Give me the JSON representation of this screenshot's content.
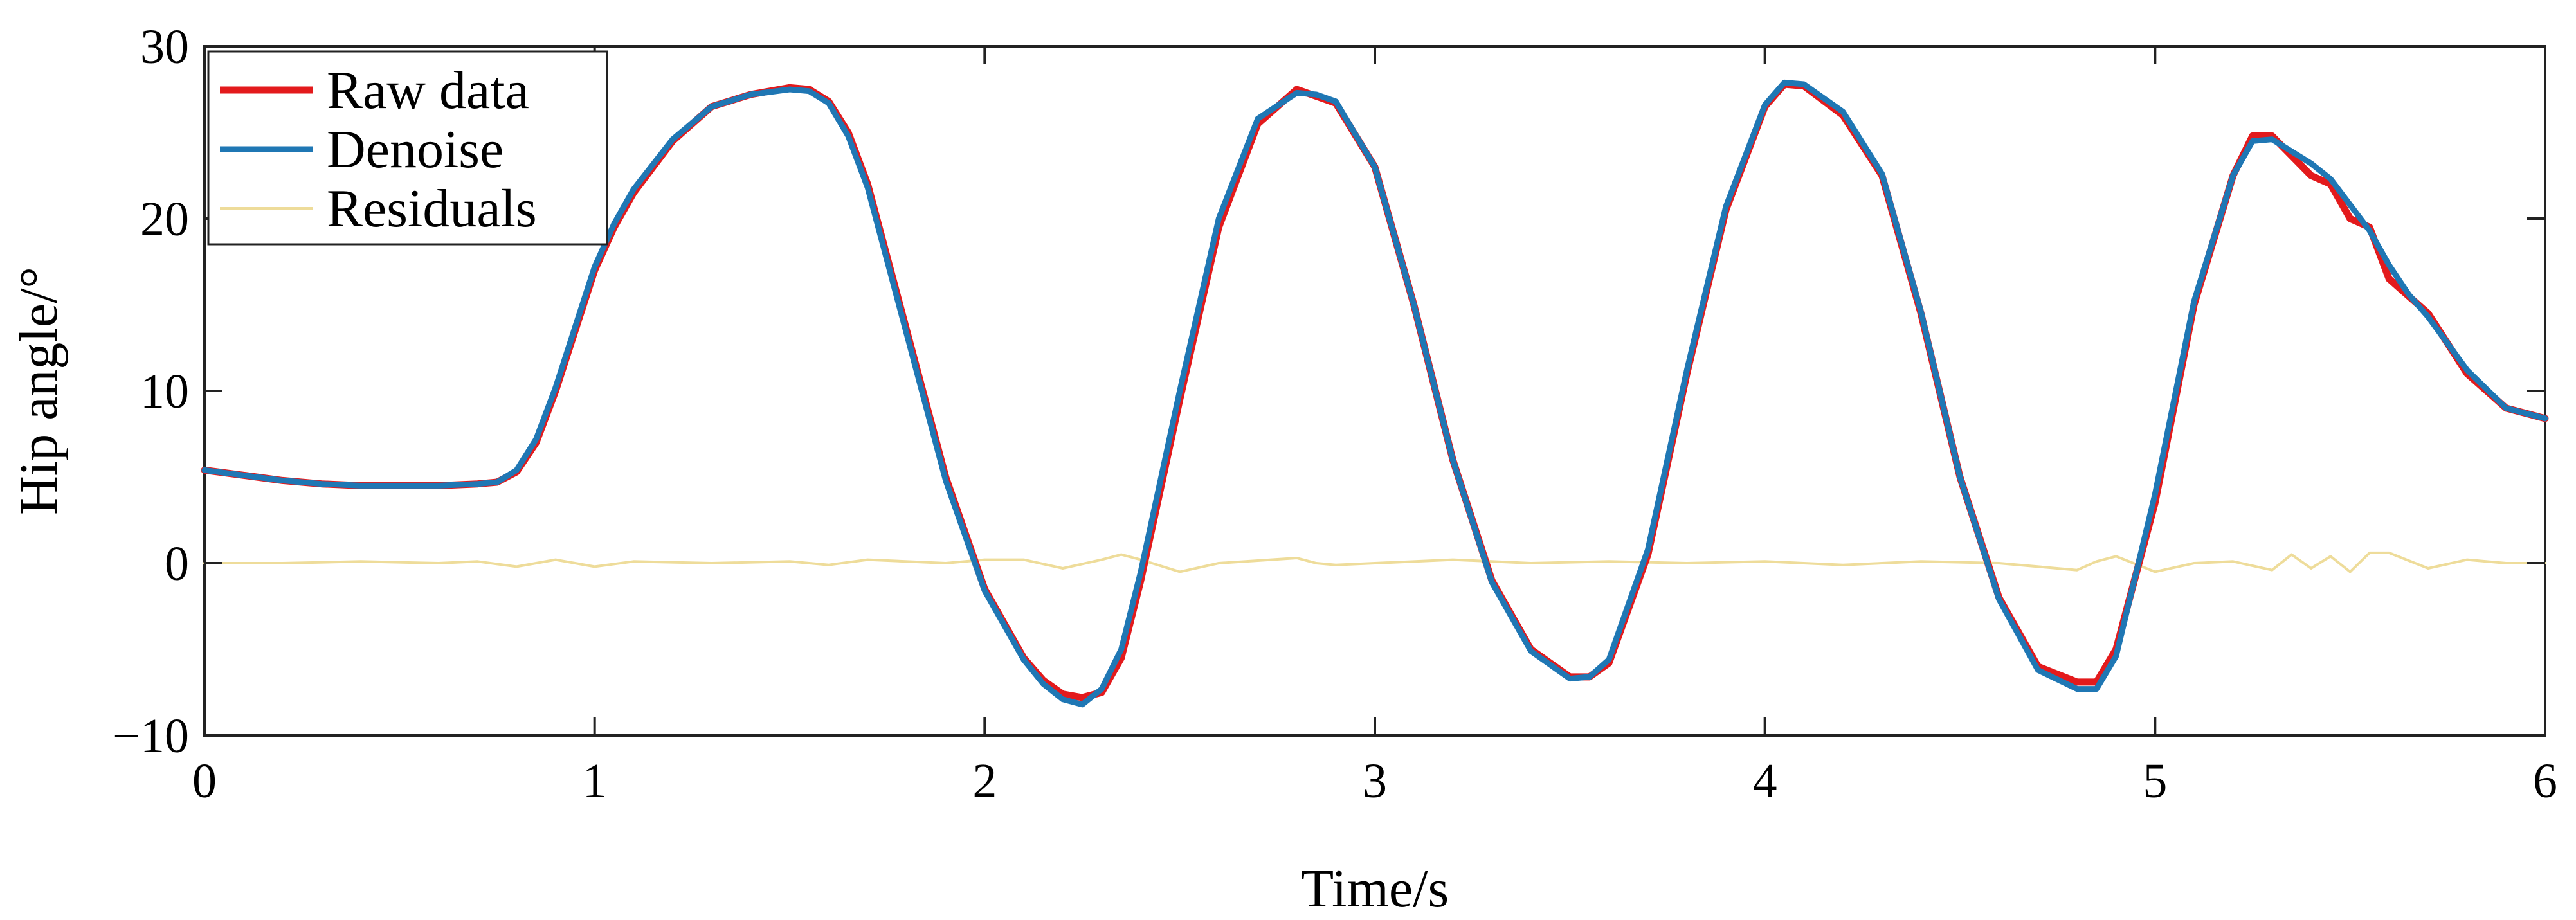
{
  "chart_data": {
    "type": "line",
    "xlabel": "Time/s",
    "ylabel": "Hip angle/°",
    "xlim": [
      0,
      6
    ],
    "ylim": [
      -10,
      30
    ],
    "x_ticks": [
      0,
      1,
      2,
      3,
      4,
      5,
      6
    ],
    "y_ticks": [
      -10,
      0,
      10,
      20,
      30
    ],
    "x_tick_labels": [
      "0",
      "1",
      "2",
      "3",
      "4",
      "5",
      "6"
    ],
    "y_tick_labels": [
      "−10",
      "0",
      "10",
      "20",
      "30"
    ],
    "grid": false,
    "legend_position": "top-left",
    "series": [
      {
        "name": "Raw data",
        "color": "#e31a1c",
        "x": [
          0,
          0.1,
          0.2,
          0.3,
          0.4,
          0.5,
          0.6,
          0.7,
          0.75,
          0.8,
          0.85,
          0.9,
          0.95,
          1.0,
          1.05,
          1.1,
          1.2,
          1.3,
          1.4,
          1.5,
          1.55,
          1.6,
          1.65,
          1.7,
          1.8,
          1.9,
          2.0,
          2.1,
          2.15,
          2.2,
          2.25,
          2.3,
          2.35,
          2.4,
          2.5,
          2.6,
          2.7,
          2.8,
          2.85,
          2.9,
          3.0,
          3.1,
          3.2,
          3.3,
          3.4,
          3.5,
          3.55,
          3.6,
          3.7,
          3.8,
          3.9,
          4.0,
          4.05,
          4.1,
          4.2,
          4.3,
          4.4,
          4.5,
          4.6,
          4.7,
          4.8,
          4.85,
          4.9,
          5.0,
          5.1,
          5.2,
          5.25,
          5.3,
          5.4,
          5.45,
          5.5,
          5.55,
          5.6,
          5.65,
          5.7,
          5.8,
          5.9,
          6.0
        ],
        "y": [
          5.4,
          5.1,
          4.8,
          4.6,
          4.5,
          4.5,
          4.5,
          4.6,
          4.7,
          5.3,
          7.0,
          10.0,
          13.5,
          17.0,
          19.5,
          21.5,
          24.5,
          26.5,
          27.2,
          27.6,
          27.5,
          26.8,
          25.0,
          22.0,
          13.5,
          5.0,
          -1.5,
          -5.5,
          -6.8,
          -7.6,
          -7.8,
          -7.5,
          -5.5,
          -1.0,
          9.5,
          19.5,
          25.5,
          27.5,
          27.1,
          26.7,
          23.0,
          15.0,
          6.0,
          -1.0,
          -5.0,
          -6.6,
          -6.6,
          -5.8,
          0.5,
          11.0,
          20.5,
          26.5,
          27.8,
          27.7,
          26.0,
          22.5,
          14.5,
          5.0,
          -2.0,
          -6.0,
          -6.9,
          -6.9,
          -5.0,
          3.5,
          15.0,
          22.5,
          24.8,
          24.8,
          22.5,
          22.0,
          20.0,
          19.5,
          16.5,
          15.5,
          14.5,
          11.0,
          9.0,
          8.4
        ]
      },
      {
        "name": "Denoise",
        "color": "#1f77b4",
        "x": [
          0,
          0.1,
          0.2,
          0.3,
          0.4,
          0.5,
          0.6,
          0.7,
          0.75,
          0.8,
          0.85,
          0.9,
          0.95,
          1.0,
          1.05,
          1.1,
          1.2,
          1.3,
          1.4,
          1.5,
          1.55,
          1.6,
          1.65,
          1.7,
          1.8,
          1.9,
          2.0,
          2.1,
          2.15,
          2.2,
          2.25,
          2.3,
          2.35,
          2.4,
          2.5,
          2.6,
          2.7,
          2.8,
          2.85,
          2.9,
          3.0,
          3.1,
          3.2,
          3.3,
          3.4,
          3.5,
          3.55,
          3.6,
          3.7,
          3.8,
          3.9,
          4.0,
          4.05,
          4.1,
          4.2,
          4.3,
          4.4,
          4.5,
          4.6,
          4.7,
          4.8,
          4.85,
          4.9,
          5.0,
          5.1,
          5.2,
          5.25,
          5.3,
          5.4,
          5.45,
          5.5,
          5.55,
          5.6,
          5.65,
          5.7,
          5.8,
          5.9,
          6.0
        ],
        "y": [
          5.4,
          5.1,
          4.8,
          4.6,
          4.5,
          4.5,
          4.5,
          4.6,
          4.7,
          5.4,
          7.2,
          10.2,
          13.7,
          17.2,
          19.7,
          21.7,
          24.6,
          26.5,
          27.2,
          27.5,
          27.4,
          26.7,
          24.8,
          21.8,
          13.3,
          4.8,
          -1.6,
          -5.6,
          -7.0,
          -7.9,
          -8.2,
          -7.3,
          -5.0,
          -0.5,
          10.0,
          20.0,
          25.8,
          27.3,
          27.2,
          26.8,
          23.0,
          15.0,
          6.0,
          -1.1,
          -5.1,
          -6.7,
          -6.6,
          -5.6,
          0.8,
          11.2,
          20.7,
          26.6,
          27.9,
          27.8,
          26.2,
          22.6,
          14.6,
          5.0,
          -2.1,
          -6.2,
          -7.3,
          -7.3,
          -5.4,
          4.0,
          15.2,
          22.5,
          24.5,
          24.6,
          23.2,
          22.3,
          20.8,
          19.3,
          17.3,
          15.6,
          14.3,
          11.2,
          9.0,
          8.4
        ]
      },
      {
        "name": "Residuals",
        "color": "#eedc9a",
        "x": [
          0,
          0.2,
          0.4,
          0.6,
          0.7,
          0.8,
          0.9,
          1.0,
          1.1,
          1.3,
          1.5,
          1.6,
          1.7,
          1.9,
          2.0,
          2.1,
          2.2,
          2.3,
          2.35,
          2.4,
          2.5,
          2.6,
          2.8,
          2.85,
          2.9,
          3.0,
          3.2,
          3.4,
          3.6,
          3.8,
          4.0,
          4.2,
          4.4,
          4.6,
          4.8,
          4.85,
          4.9,
          5.0,
          5.1,
          5.2,
          5.3,
          5.35,
          5.4,
          5.45,
          5.5,
          5.55,
          5.6,
          5.7,
          5.8,
          5.9,
          6.0
        ],
        "y": [
          0,
          0,
          0.1,
          0,
          0.1,
          -0.2,
          0.2,
          -0.2,
          0.1,
          0,
          0.1,
          -0.1,
          0.2,
          0,
          0.2,
          0.2,
          -0.3,
          0.2,
          0.5,
          0.2,
          -0.5,
          0,
          0.3,
          0,
          -0.1,
          0,
          0.2,
          0,
          0.1,
          0,
          0.1,
          -0.1,
          0.1,
          0,
          -0.4,
          0.1,
          0.4,
          -0.5,
          0,
          0.1,
          -0.4,
          0.5,
          -0.3,
          0.4,
          -0.5,
          0.6,
          0.6,
          -0.3,
          0.2,
          0,
          0
        ]
      }
    ]
  }
}
